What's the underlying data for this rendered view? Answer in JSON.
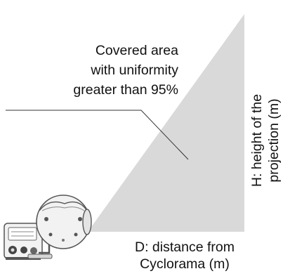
{
  "diagram": {
    "covered_area_label": "Covered area\nwith uniformity\ngreater than 95%",
    "distance_label": "D: distance from\nCyclorama (m)",
    "height_label": "H: height of the\nprojection (m)",
    "colors": {
      "coverage_fill": "#d9d9d9",
      "leader_line": "#333333",
      "fixture_body": "#f2f2f2",
      "fixture_outline": "#555555",
      "text": "#111111"
    },
    "icons": [
      "luminaire-fixture-icon"
    ]
  }
}
